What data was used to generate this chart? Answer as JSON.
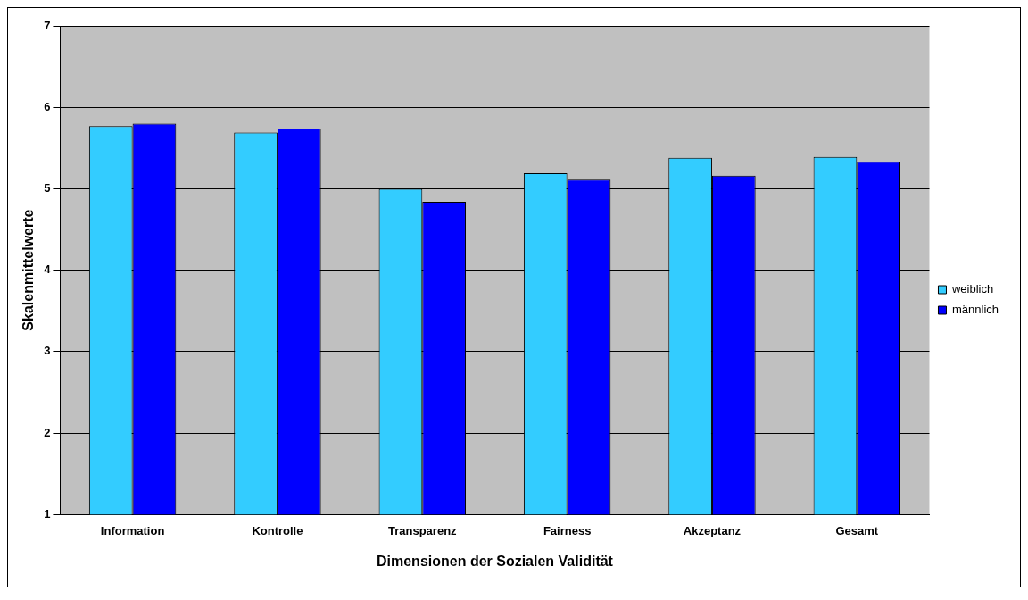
{
  "chart_data": {
    "type": "bar",
    "xlabel": "Dimensionen der Sozialen Validität",
    "ylabel": "Skalenmittelwerte",
    "categories": [
      "Information",
      "Kontrolle",
      "Transparenz",
      "Fairness",
      "Akzeptanz",
      "Gesamt"
    ],
    "series": [
      {
        "name": "weiblich",
        "color": "#33ccff",
        "values": [
          5.77,
          5.69,
          5.0,
          5.19,
          5.38,
          5.39
        ]
      },
      {
        "name": "männlich",
        "color": "#0000ff",
        "values": [
          5.8,
          5.74,
          4.84,
          5.11,
          5.16,
          5.33
        ]
      }
    ],
    "ylim": [
      1,
      7
    ],
    "yticks": [
      1,
      2,
      3,
      4,
      5,
      6,
      7
    ],
    "grid": "y",
    "legend": "right"
  }
}
